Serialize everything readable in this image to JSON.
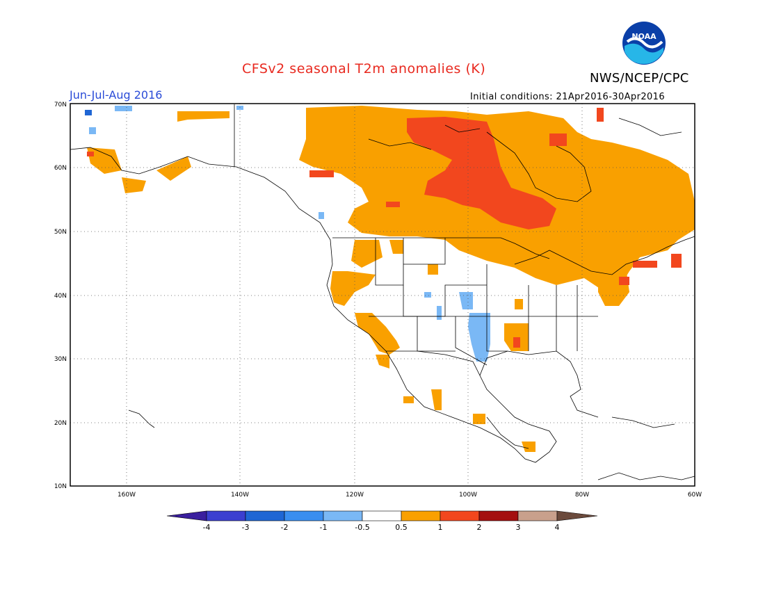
{
  "header": {
    "title": "CFSv2 seasonal T2m anomalies (K)",
    "agency": "NWS/NCEP/CPC",
    "season": "Jun-Jul-Aug 2016",
    "initial_conditions": "Initial conditions: 21Apr2016-30Apr2016",
    "logo_text": "NOAA"
  },
  "colors": {
    "title": "#e8281e",
    "season": "#2a4bd7",
    "land_line": "#000000",
    "grid": "#555555"
  },
  "axes": {
    "lon_labels": [
      "160W",
      "140W",
      "120W",
      "100W",
      "80W",
      "60W"
    ],
    "lat_labels": [
      "10N",
      "20N",
      "30N",
      "40N",
      "50N",
      "60N",
      "70N"
    ]
  },
  "colorbar": {
    "ticks": [
      "-4",
      "-3",
      "-2",
      "-1",
      "-0.5",
      "0.5",
      "1",
      "2",
      "3",
      "4"
    ],
    "colors": [
      "#3a1f9e",
      "#3b3fd0",
      "#1f66d4",
      "#3a8ef0",
      "#7ab8f5",
      "#ffffff",
      "#f9a000",
      "#f2471e",
      "#a40f0f",
      "#c9a08c",
      "#6b4a3c"
    ]
  },
  "anomaly_regions": [
    {
      "level": "0.5-1",
      "description": "Canada and Great Lakes warm"
    },
    {
      "level": "1-2",
      "description": "Hudson Bay region"
    },
    {
      "level": "-1--0.5",
      "description": "Southern Plains cool"
    }
  ]
}
